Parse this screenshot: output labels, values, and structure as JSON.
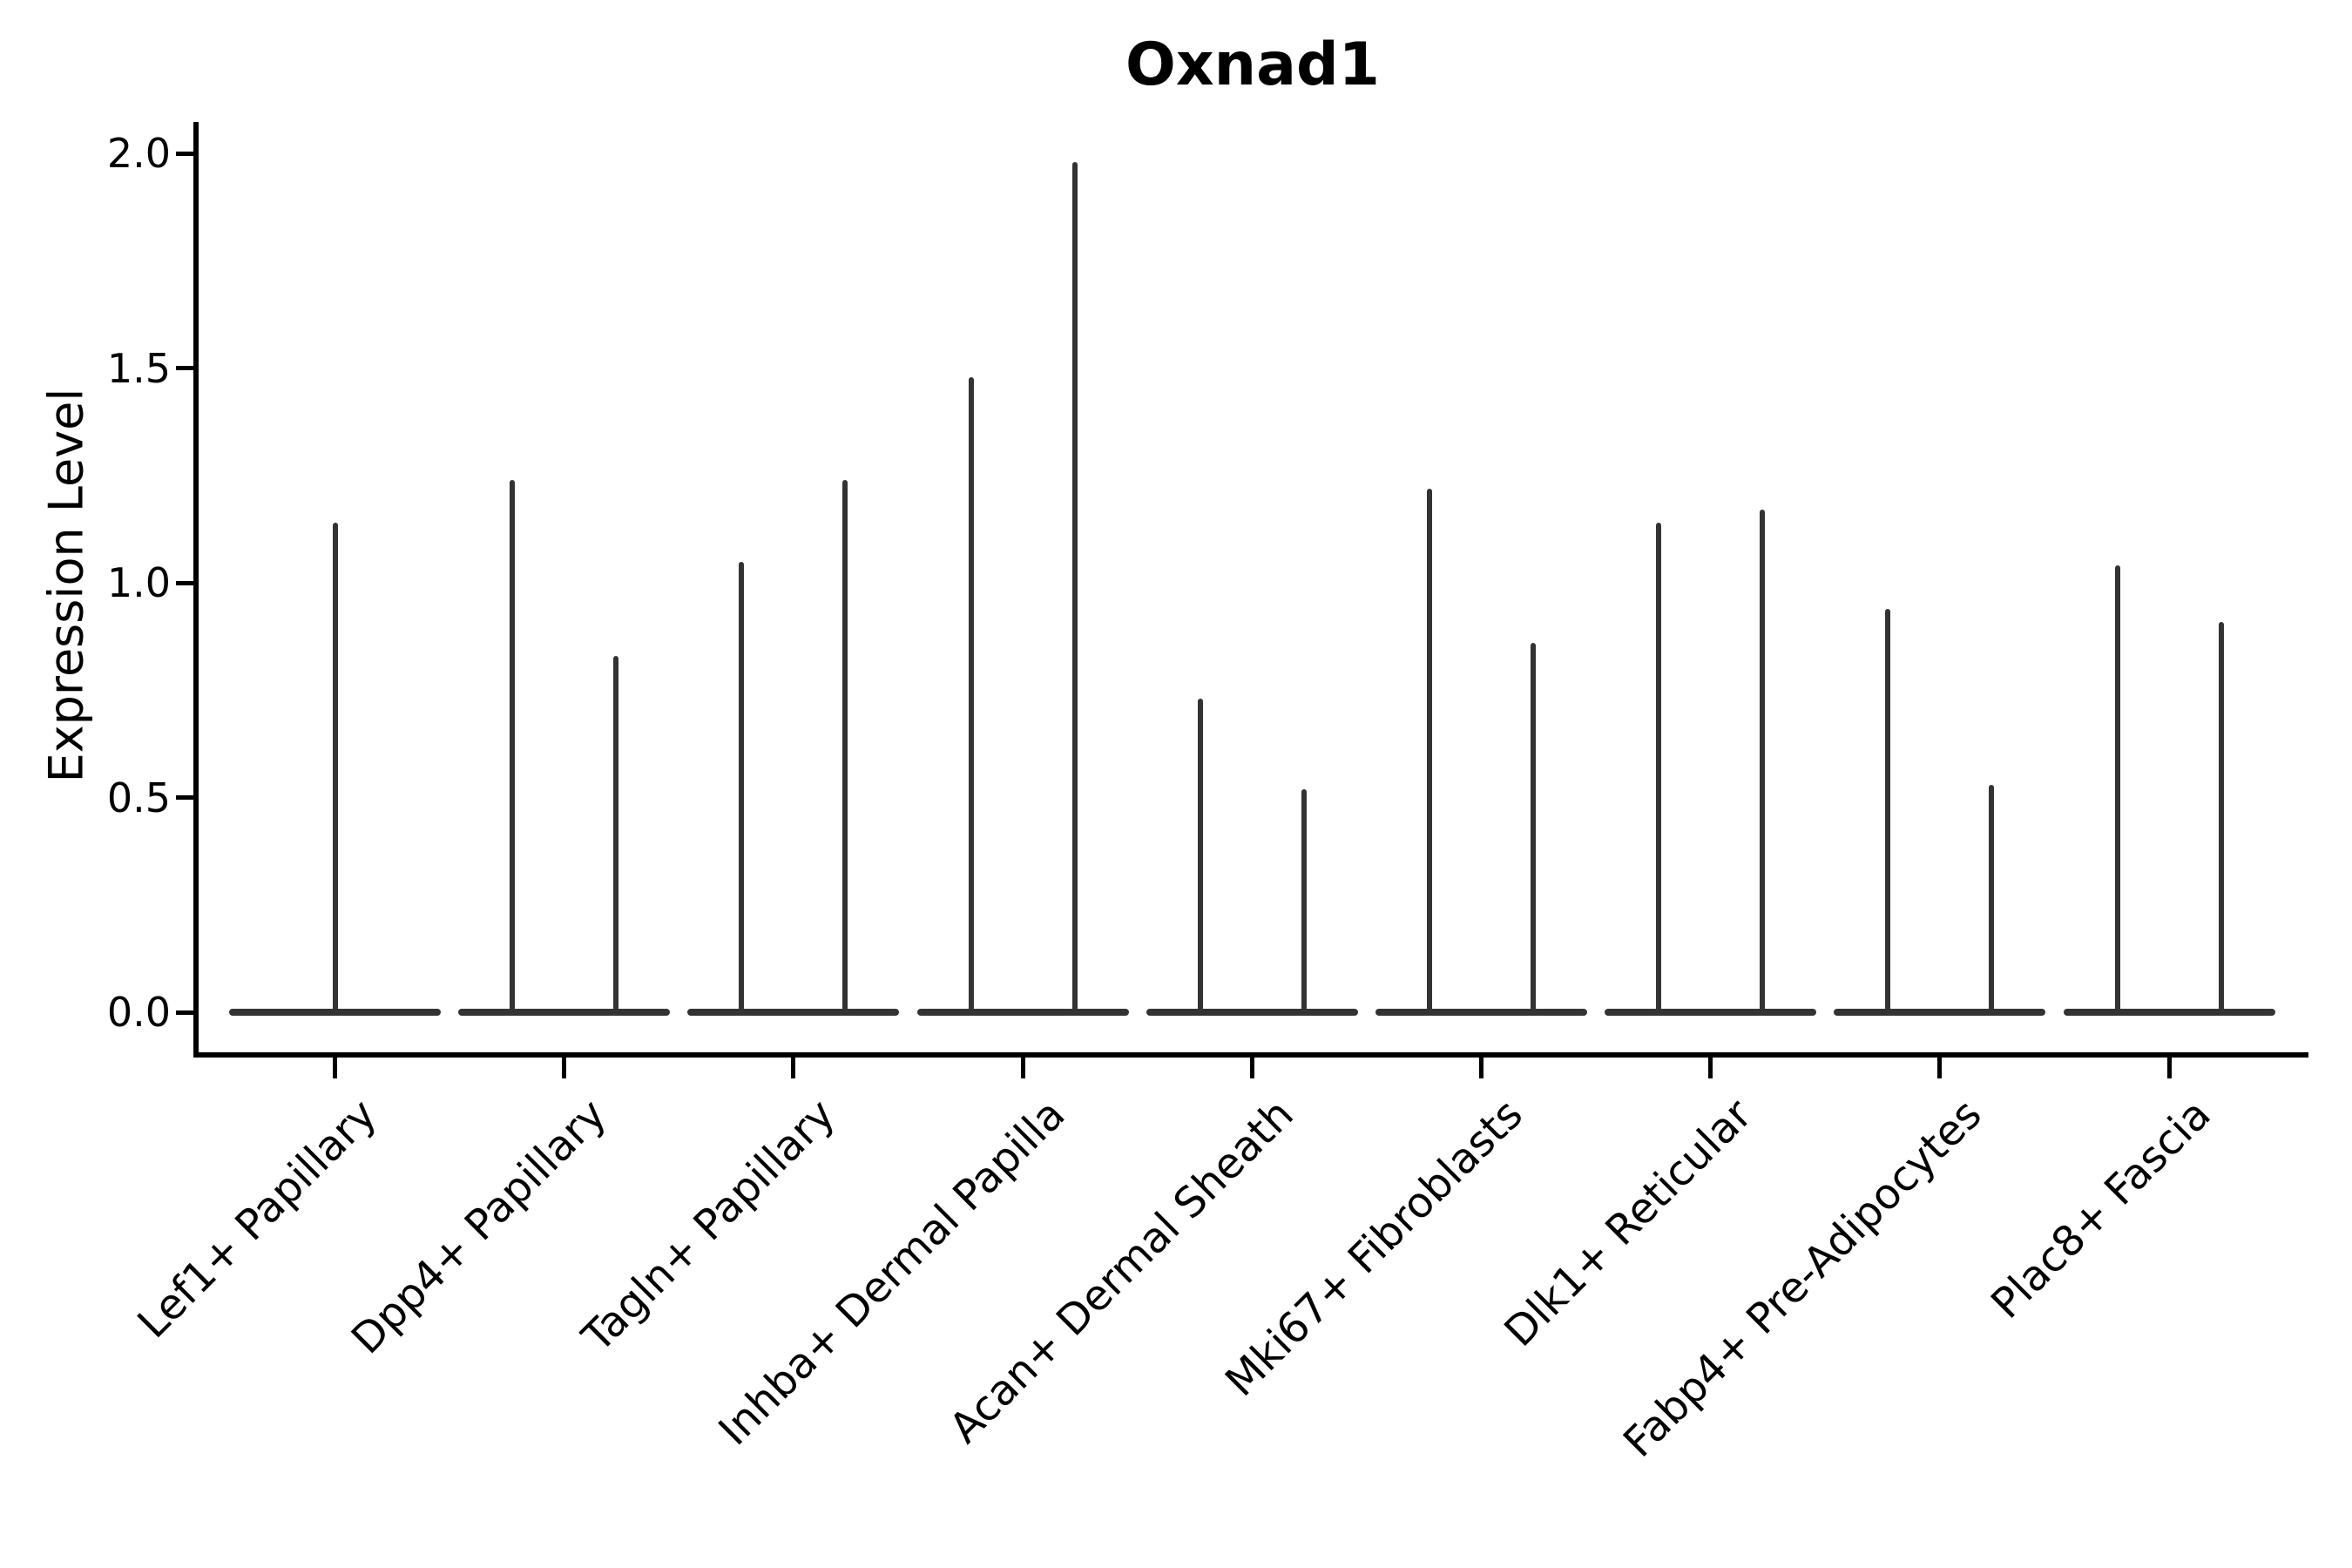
{
  "title": "Oxnad1",
  "axes": {
    "ylabel": "Expression Level",
    "ytick_labels": [
      "0.0",
      "0.5",
      "1.0",
      "1.5",
      "2.0"
    ]
  },
  "chart_data": {
    "type": "violin",
    "title": "Oxnad1",
    "xlabel": "",
    "ylabel": "Expression Level",
    "ylim": [
      0,
      2
    ],
    "yticks": [
      0.0,
      0.5,
      1.0,
      1.5,
      2.0
    ],
    "grid": false,
    "legend": false,
    "orientation": "vertical",
    "line_color": "#333333",
    "axis_color": "#000000",
    "background_color": "#ffffff",
    "description": "Sparse single-cell expression violins: each category shows a wide flat bulk of zero values at y=0 plus thin vertical density tails whose tops mark the maximum expression.",
    "bulk_value": 0.0,
    "categories": [
      "Lef1+ Papillary",
      "Dpp4+ Papillary",
      "Tagln+ Papillary",
      "Inhba+ Dermal Papilla",
      "Acan+ Dermal Sheath",
      "Mki67+ Fibroblasts",
      "Dlk1+ Reticular",
      "Fabp4+ Pre-Adipocytes",
      "Plac8+ Fascia"
    ],
    "violins": [
      {
        "category": "Lef1+ Papillary",
        "spikes": [
          {
            "dx": 0,
            "max": 1.14
          }
        ]
      },
      {
        "category": "Dpp4+ Papillary",
        "spikes": [
          {
            "dx": -59.5,
            "max": 1.24
          },
          {
            "dx": 59.5,
            "max": 0.83
          }
        ]
      },
      {
        "category": "Tagln+ Papillary",
        "spikes": [
          {
            "dx": -59.5,
            "max": 1.05
          },
          {
            "dx": 59.5,
            "max": 1.24
          }
        ]
      },
      {
        "category": "Inhba+ Dermal Papilla",
        "spikes": [
          {
            "dx": -59.5,
            "max": 1.48
          },
          {
            "dx": 59.5,
            "max": 1.98
          }
        ]
      },
      {
        "category": "Acan+ Dermal Sheath",
        "spikes": [
          {
            "dx": -59.5,
            "max": 0.73
          },
          {
            "dx": 59.5,
            "max": 0.52
          }
        ]
      },
      {
        "category": "Mki67+ Fibroblasts",
        "spikes": [
          {
            "dx": -59.5,
            "max": 1.22
          },
          {
            "dx": 59.5,
            "max": 0.86
          }
        ]
      },
      {
        "category": "Dlk1+ Reticular",
        "spikes": [
          {
            "dx": -59.5,
            "max": 1.14
          },
          {
            "dx": 59.5,
            "max": 1.17
          }
        ]
      },
      {
        "category": "Fabp4+ Pre-Adipocytes",
        "spikes": [
          {
            "dx": -59.5,
            "max": 0.94
          },
          {
            "dx": 59.5,
            "max": 0.53
          }
        ]
      },
      {
        "category": "Plac8+ Fascia",
        "spikes": [
          {
            "dx": -59.5,
            "max": 1.04
          },
          {
            "dx": 59.5,
            "max": 0.91
          }
        ]
      }
    ]
  }
}
